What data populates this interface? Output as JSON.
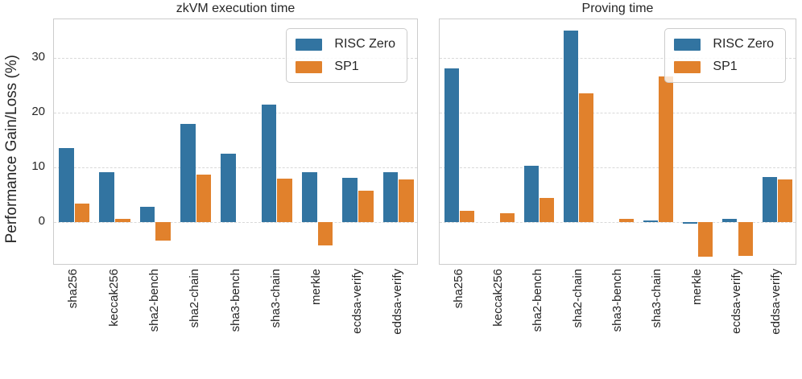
{
  "ylabel": "Performance Gain/Loss (%)",
  "colors": {
    "risc_zero_blue": "#3274a1",
    "sp1_orange": "#e1812c",
    "grid": "#d9d9d9",
    "spine": "#cccccc",
    "text": "#262626"
  },
  "legend": {
    "items": [
      {
        "label": "RISC Zero",
        "color": "#3274a1"
      },
      {
        "label": "SP1",
        "color": "#e1812c"
      }
    ]
  },
  "yticks": [
    0,
    10,
    20,
    30
  ],
  "chart_data": [
    {
      "type": "bar",
      "title": "zkVM execution time",
      "categories": [
        "sha256",
        "keccak256",
        "sha2-bench",
        "sha2-chain",
        "sha3-bench",
        "sha3-chain",
        "merkle",
        "ecdsa-verify",
        "eddsa-verify"
      ],
      "series": [
        {
          "name": "RISC Zero",
          "color": "#3274a1",
          "values": [
            13.6,
            9.2,
            2.9,
            18.0,
            12.5,
            21.5,
            9.2,
            8.2,
            9.2
          ]
        },
        {
          "name": "SP1",
          "color": "#e1812c",
          "values": [
            3.4,
            0.6,
            -3.4,
            8.7,
            0,
            8.0,
            -4.2,
            5.8,
            7.8
          ]
        }
      ],
      "xlabel": "",
      "ylabel": "Performance Gain/Loss (%)",
      "ylim": [
        -7.9,
        37.1
      ],
      "yticks": [
        0,
        10,
        20,
        30
      ],
      "grid": true,
      "legend_position": "upper right"
    },
    {
      "type": "bar",
      "title": "Proving time",
      "categories": [
        "sha256",
        "keccak256",
        "sha2-bench",
        "sha2-chain",
        "sha3-bench",
        "sha3-chain",
        "merkle",
        "ecdsa-verify",
        "eddsa-verify"
      ],
      "series": [
        {
          "name": "RISC Zero",
          "color": "#3274a1",
          "values": [
            28.2,
            0,
            10.3,
            35.0,
            0,
            0.4,
            -0.2,
            0.6,
            8.3
          ]
        },
        {
          "name": "SP1",
          "color": "#e1812c",
          "values": [
            2.1,
            1.7,
            4.5,
            23.5,
            0.7,
            26.6,
            -6.3,
            -6.1,
            7.8
          ]
        }
      ],
      "xlabel": "",
      "ylabel": "",
      "ylim": [
        -7.9,
        37.1
      ],
      "yticks": [
        0,
        10,
        20,
        30
      ],
      "grid": true,
      "legend_position": "upper right"
    }
  ]
}
